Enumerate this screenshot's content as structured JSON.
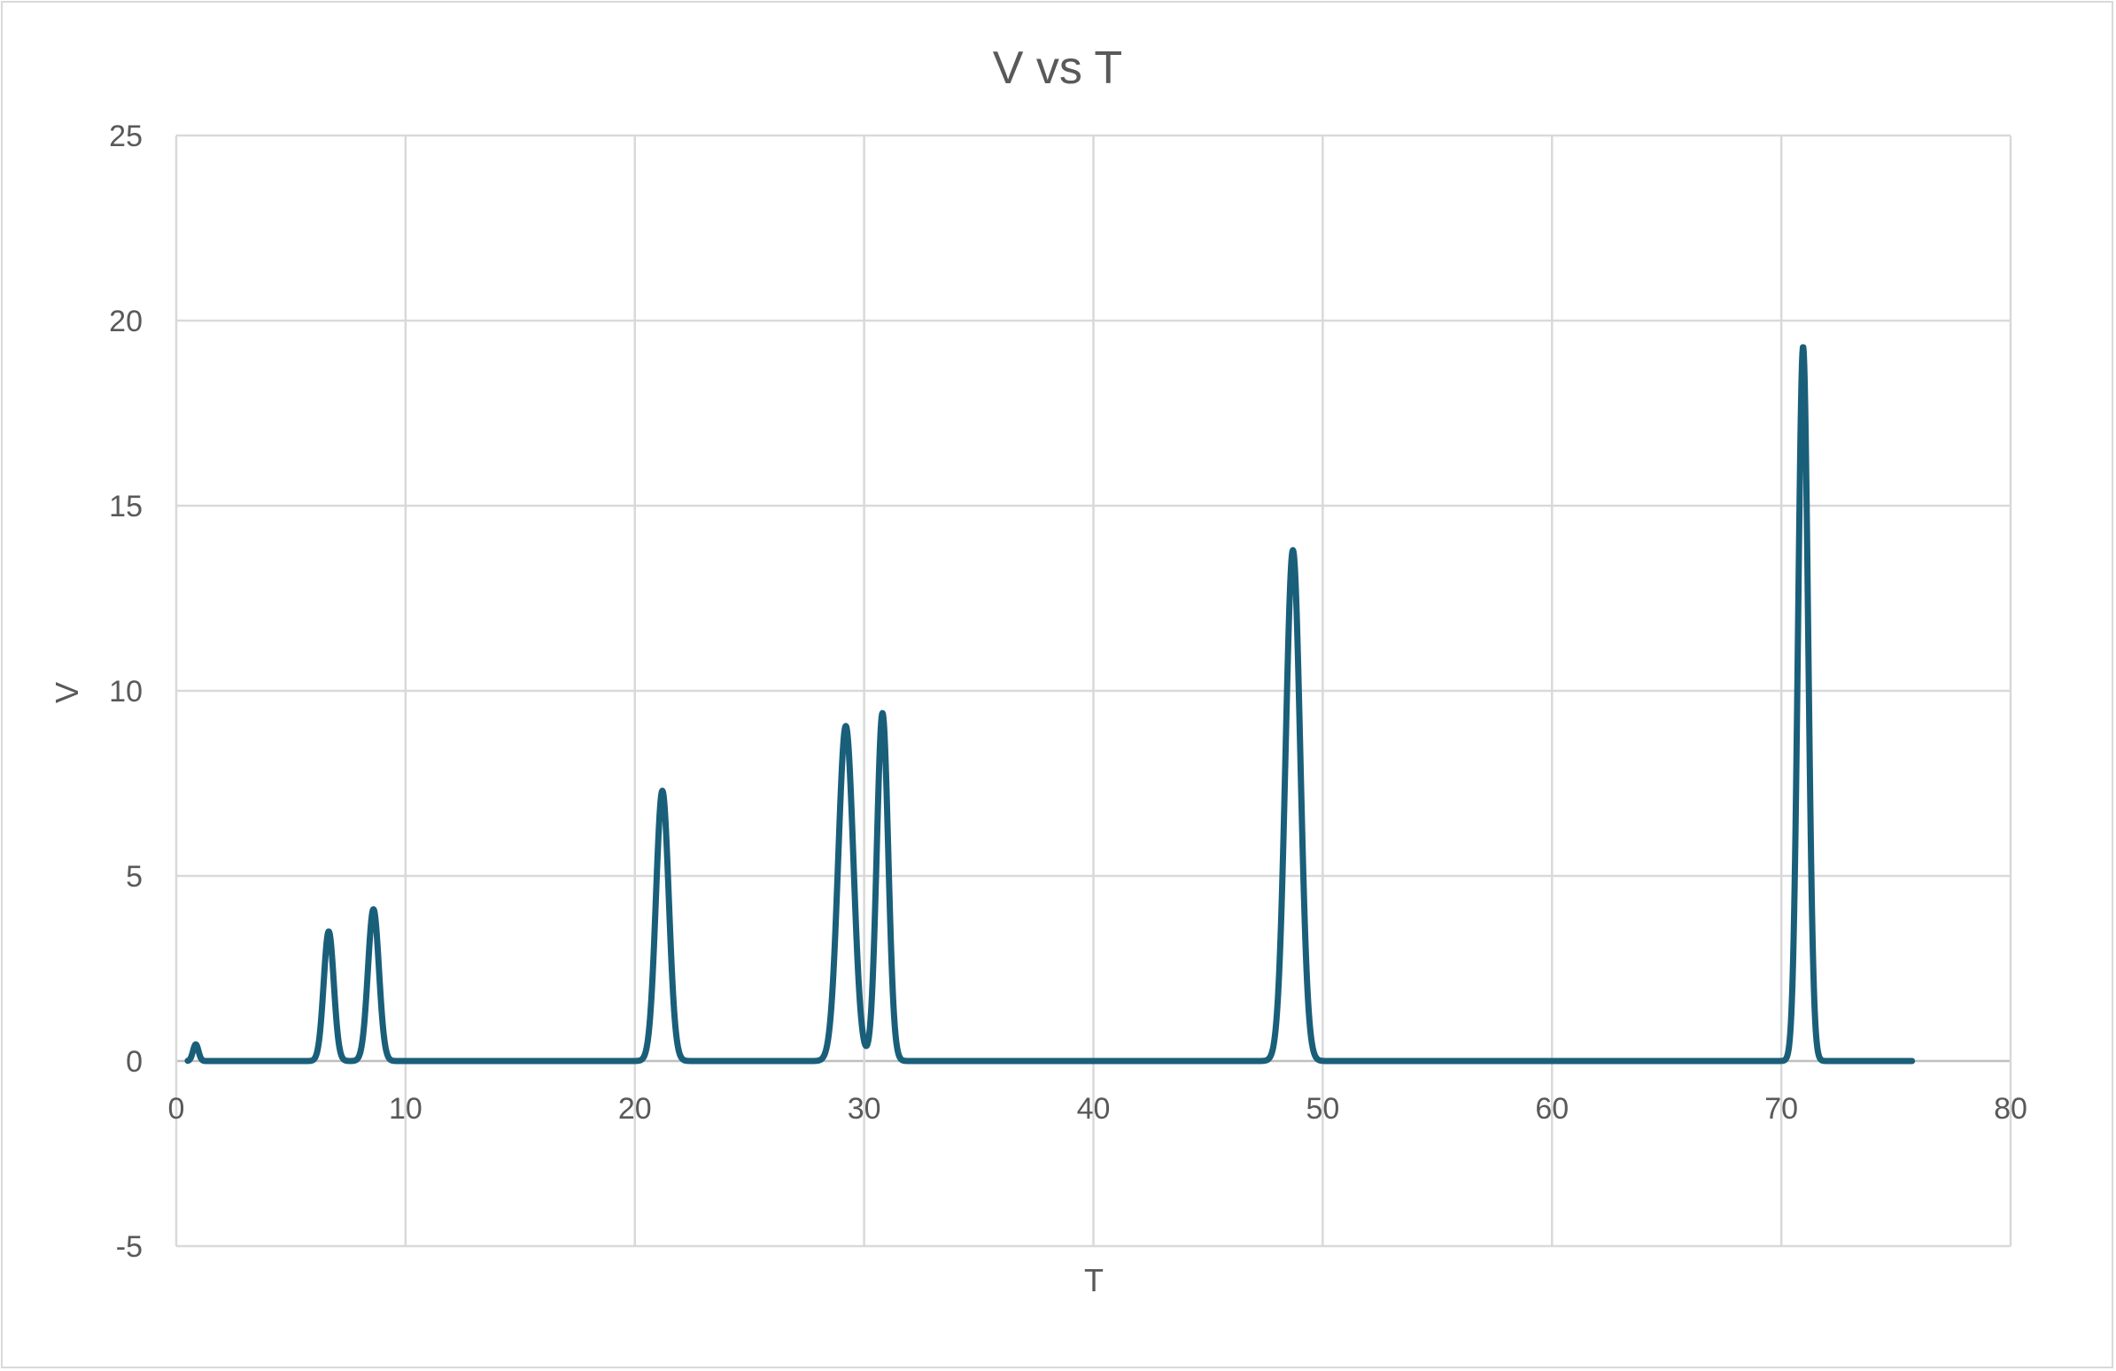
{
  "chart_data": {
    "type": "line",
    "title": "V vs T",
    "xlabel": "T",
    "ylabel": "V",
    "xlim": [
      0,
      80
    ],
    "ylim": [
      -5,
      25
    ],
    "xticks": [
      0,
      10,
      20,
      30,
      40,
      50,
      60,
      70,
      80
    ],
    "yticks": [
      -5,
      0,
      5,
      10,
      15,
      20,
      25
    ],
    "grid": true,
    "legend": "none",
    "series": [
      {
        "color": "#1a5f7a",
        "peaks": [
          {
            "t": 0.85,
            "v": 0.45,
            "width": 0.12
          },
          {
            "t": 6.65,
            "v": 3.5,
            "width": 0.22
          },
          {
            "t": 8.6,
            "v": 4.1,
            "width": 0.24
          },
          {
            "t": 21.2,
            "v": 7.3,
            "width": 0.28
          },
          {
            "t": 29.2,
            "v": 9.05,
            "width": 0.33
          },
          {
            "t": 30.8,
            "v": 9.4,
            "width": 0.25
          },
          {
            "t": 48.7,
            "v": 13.8,
            "width": 0.32
          },
          {
            "t": 70.95,
            "v": 19.3,
            "width": 0.22
          }
        ],
        "t_start": 0.5,
        "t_end": 75.7,
        "baseline": 0
      }
    ]
  }
}
